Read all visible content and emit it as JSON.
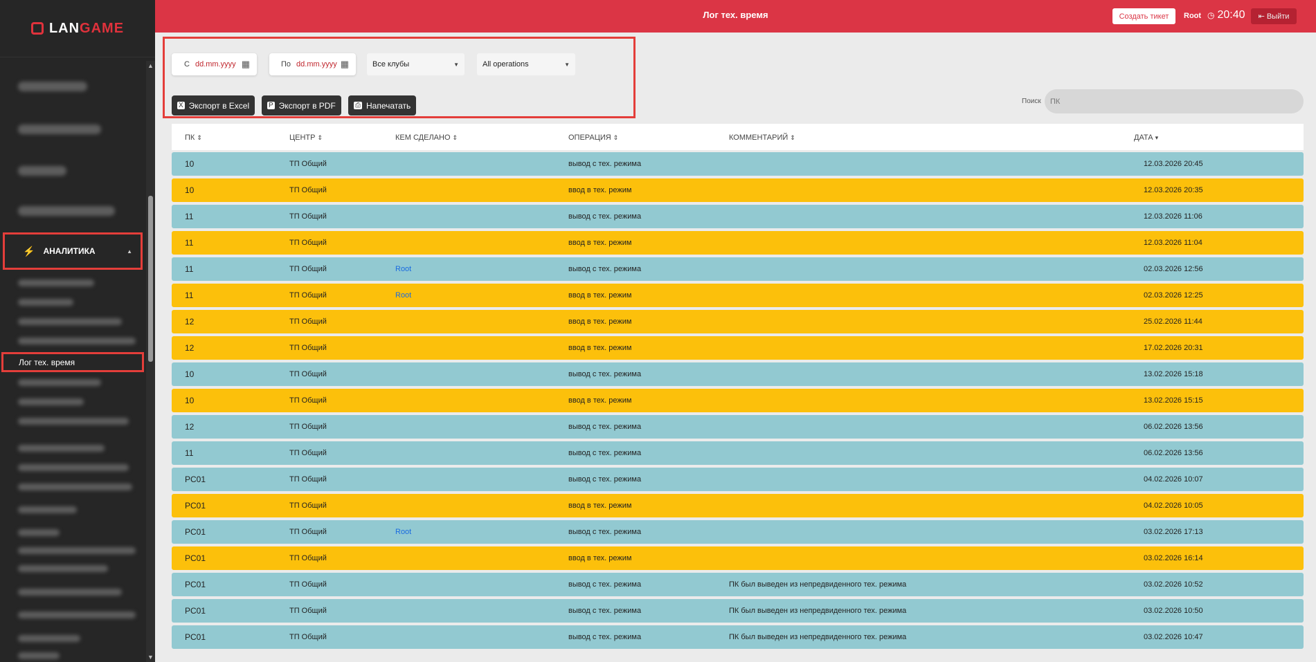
{
  "sidebar": {
    "logo_lan": "LAN",
    "logo_game": "GAME",
    "section": "АНАЛИТИКА",
    "active_item": "Лог тех. время"
  },
  "header": {
    "title": "Лог тех. время",
    "create_ticket": "Создать тикет",
    "user": "Root",
    "time": "20:40",
    "logout": "Выйти"
  },
  "filters": {
    "from_label": "С",
    "to_label": "По",
    "date_placeholder": "dd.mm.yyyy",
    "clubs": "Все клубы",
    "operations": "All operations",
    "export_excel": "Экспорт в Excel",
    "export_pdf": "Экспорт в PDF",
    "print": "Напечатать",
    "search_label": "Поиск",
    "search_placeholder": "ПК"
  },
  "table": {
    "headers": [
      "ПК",
      "ЦЕНТР",
      "КЕМ СДЕЛАНО",
      "ОПЕРАЦИЯ",
      "КОММЕНТАРИЙ",
      "ДАТА"
    ],
    "rows": [
      {
        "pc": "10",
        "center": "ТП Общий",
        "by": "",
        "op": "вывод с тех. режима",
        "comment": "",
        "date": "12.03.2026 20:45",
        "type": "teal"
      },
      {
        "pc": "10",
        "center": "ТП Общий",
        "by": "",
        "op": "ввод в тех. режим",
        "comment": "",
        "date": "12.03.2026 20:35",
        "type": "yellow"
      },
      {
        "pc": "11",
        "center": "ТП Общий",
        "by": "",
        "op": "вывод с тех. режима",
        "comment": "",
        "date": "12.03.2026 11:06",
        "type": "teal"
      },
      {
        "pc": "11",
        "center": "ТП Общий",
        "by": "",
        "op": "ввод в тех. режим",
        "comment": "",
        "date": "12.03.2026 11:04",
        "type": "yellow"
      },
      {
        "pc": "11",
        "center": "ТП Общий",
        "by": "Root",
        "op": "вывод с тех. режима",
        "comment": "",
        "date": "02.03.2026 12:56",
        "type": "teal"
      },
      {
        "pc": "11",
        "center": "ТП Общий",
        "by": "Root",
        "op": "ввод в тех. режим",
        "comment": "",
        "date": "02.03.2026 12:25",
        "type": "yellow"
      },
      {
        "pc": "12",
        "center": "ТП Общий",
        "by": "",
        "op": "ввод в тех. режим",
        "comment": "",
        "date": "25.02.2026 11:44",
        "type": "yellow"
      },
      {
        "pc": "12",
        "center": "ТП Общий",
        "by": "",
        "op": "ввод в тех. режим",
        "comment": "",
        "date": "17.02.2026 20:31",
        "type": "yellow"
      },
      {
        "pc": "10",
        "center": "ТП Общий",
        "by": "",
        "op": "вывод с тех. режима",
        "comment": "",
        "date": "13.02.2026 15:18",
        "type": "teal"
      },
      {
        "pc": "10",
        "center": "ТП Общий",
        "by": "",
        "op": "ввод в тех. режим",
        "comment": "",
        "date": "13.02.2026 15:15",
        "type": "yellow"
      },
      {
        "pc": "12",
        "center": "ТП Общий",
        "by": "",
        "op": "вывод с тех. режима",
        "comment": "",
        "date": "06.02.2026 13:56",
        "type": "teal"
      },
      {
        "pc": "11",
        "center": "ТП Общий",
        "by": "",
        "op": "вывод с тех. режима",
        "comment": "",
        "date": "06.02.2026 13:56",
        "type": "teal"
      },
      {
        "pc": "PC01",
        "center": "ТП Общий",
        "by": "",
        "op": "вывод с тех. режима",
        "comment": "",
        "date": "04.02.2026 10:07",
        "type": "teal"
      },
      {
        "pc": "PC01",
        "center": "ТП Общий",
        "by": "",
        "op": "ввод в тех. режим",
        "comment": "",
        "date": "04.02.2026 10:05",
        "type": "yellow"
      },
      {
        "pc": "PC01",
        "center": "ТП Общий",
        "by": "Root",
        "op": "вывод с тех. режима",
        "comment": "",
        "date": "03.02.2026 17:13",
        "type": "teal"
      },
      {
        "pc": "PC01",
        "center": "ТП Общий",
        "by": "",
        "op": "ввод в тех. режим",
        "comment": "",
        "date": "03.02.2026 16:14",
        "type": "yellow"
      },
      {
        "pc": "PC01",
        "center": "ТП Общий",
        "by": "",
        "op": "вывод с тех. режима",
        "comment": "ПК был выведен из непредвиденного тех. режима",
        "date": "03.02.2026 10:52",
        "type": "teal"
      },
      {
        "pc": "PC01",
        "center": "ТП Общий",
        "by": "",
        "op": "вывод с тех. режима",
        "comment": "ПК был выведен из непредвиденного тех. режима",
        "date": "03.02.2026 10:50",
        "type": "teal"
      },
      {
        "pc": "PC01",
        "center": "ТП Общий",
        "by": "",
        "op": "вывод с тех. режима",
        "comment": "ПК был выведен из непредвиденного тех. режима",
        "date": "03.02.2026 10:47",
        "type": "teal"
      }
    ]
  },
  "colors": {
    "header": "#db3545",
    "teal_row": "#92c9d1",
    "yellow_row": "#fcc00b",
    "highlight": "#e43e3a"
  }
}
